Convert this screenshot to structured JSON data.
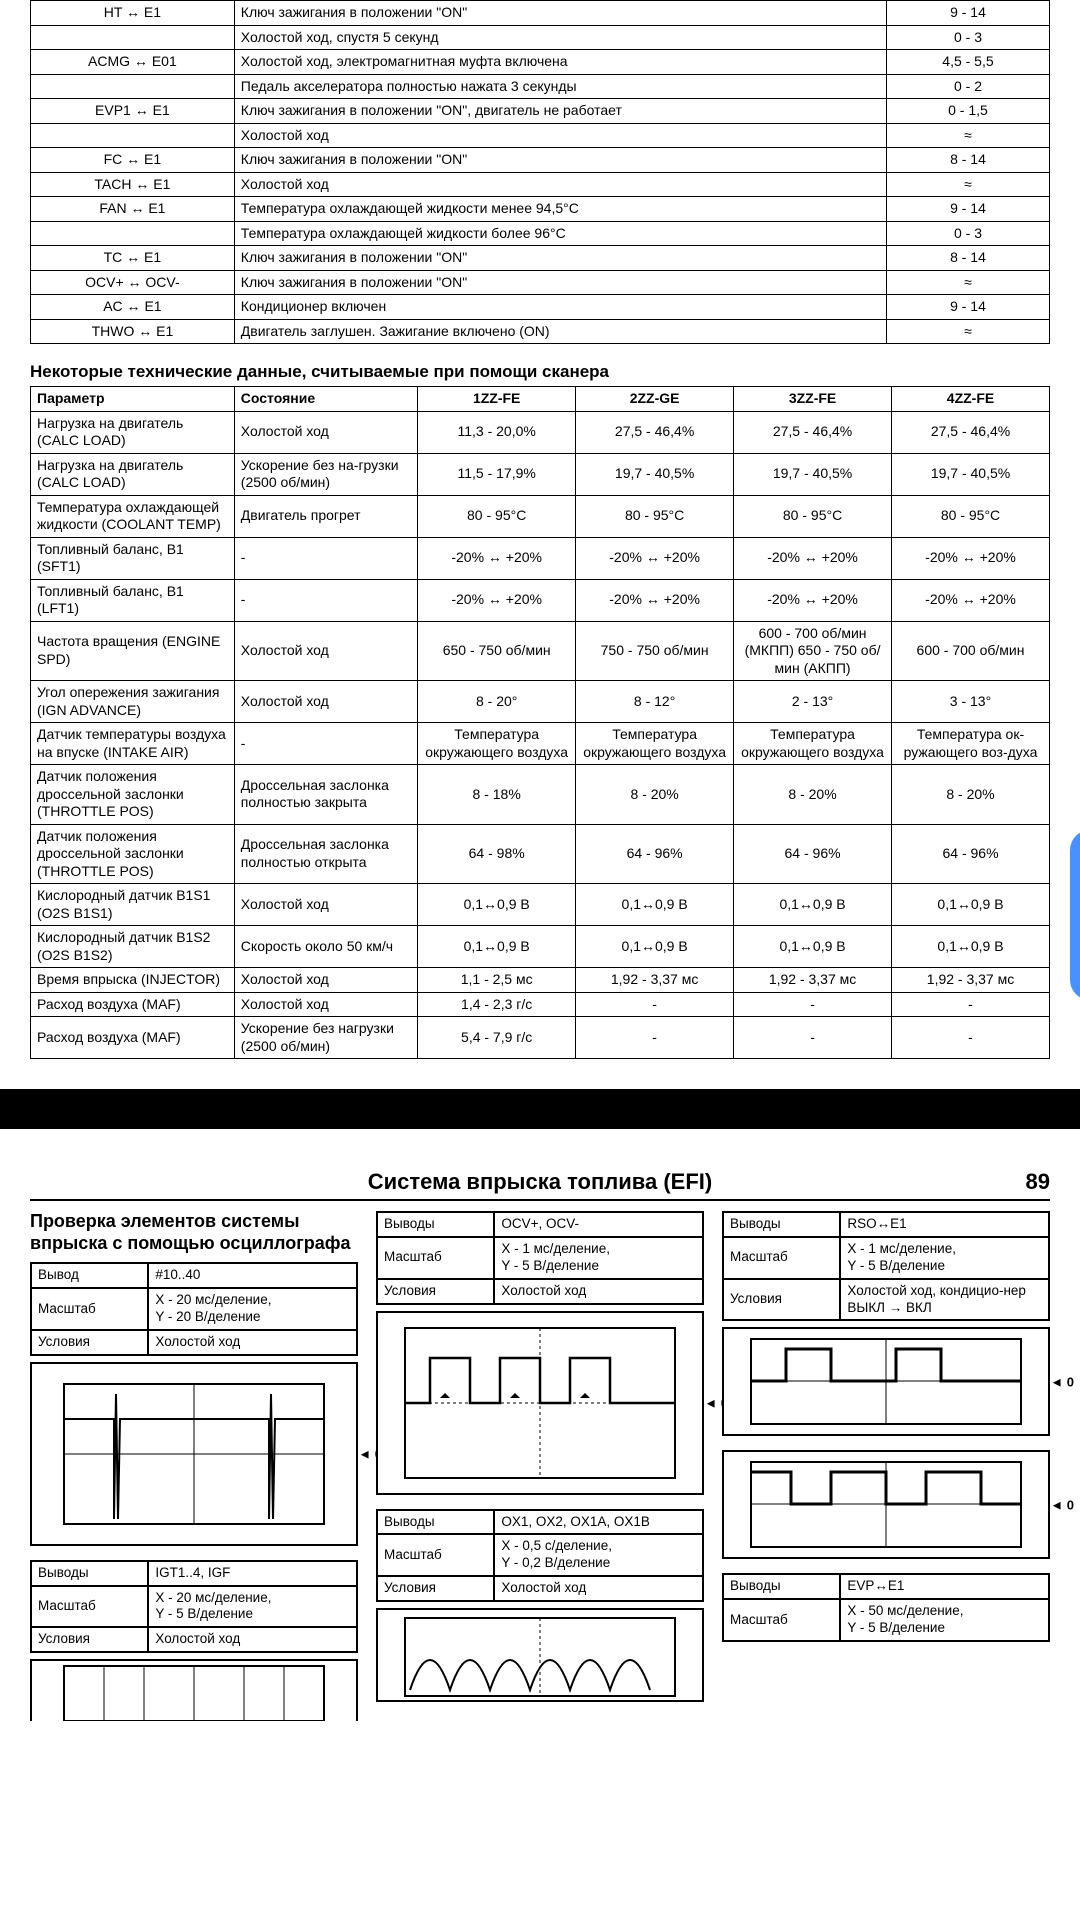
{
  "table1_rows": [
    [
      "HT ↔ E1",
      "Ключ зажигания в положении \"ON\"",
      "9 - 14"
    ],
    [
      "",
      "Холостой ход, спустя 5 секунд",
      "0 - 3"
    ],
    [
      "ACMG ↔ E01",
      "Холостой ход, электромагнитная муфта включена",
      "4,5 - 5,5"
    ],
    [
      "",
      "Педаль акселератора полностью нажата 3 секунды",
      "0 - 2"
    ],
    [
      "EVP1 ↔ E1",
      "Ключ зажигания в положении \"ON\", двигатель не работает",
      "0 - 1,5"
    ],
    [
      "",
      "Холостой ход",
      "≈"
    ],
    [
      "FC ↔ E1",
      "Ключ зажигания в положении \"ON\"",
      "8 - 14"
    ],
    [
      "TACH ↔  E1",
      "Холостой ход",
      "≈"
    ],
    [
      "FAN ↔ E1",
      "Температура охлаждающей жидкости менее 94,5°C",
      "9 - 14"
    ],
    [
      "",
      "Температура охлаждающей жидкости более 96°C",
      "0 - 3"
    ],
    [
      "TC ↔ E1",
      "Ключ зажигания в положении \"ON\"",
      "8 - 14"
    ],
    [
      "OCV+ ↔ OCV-",
      "Ключ зажигания в положении \"ON\"",
      "≈"
    ],
    [
      "AC ↔  E1",
      "Кондиционер включен",
      "9 - 14"
    ],
    [
      "THWO ↔  E1",
      "Двигатель заглушен. Зажигание включено (ON)",
      "≈"
    ]
  ],
  "sec2_title": "Некоторые технические данные, считываемые при помощи сканера",
  "table2_headers": [
    "Параметр",
    "Состояние",
    "1ZZ-FE",
    "2ZZ-GE",
    "3ZZ-FE",
    "4ZZ-FE"
  ],
  "table2_rows": [
    [
      "Нагрузка на двигатель (CALC LOAD)",
      "Холостой ход",
      "11,3 - 20,0%",
      "27,5 - 46,4%",
      "27,5 - 46,4%",
      "27,5 - 46,4%"
    ],
    [
      "Нагрузка на двигатель (CALC LOAD)",
      "Ускорение без на-грузки (2500 об/мин)",
      "11,5 - 17,9%",
      "19,7 - 40,5%",
      "19,7 - 40,5%",
      "19,7 - 40,5%"
    ],
    [
      "Температура охлаждающей жидкости (COOLANT TEMP)",
      "Двигатель прогрет",
      "80 - 95°C",
      "80 - 95°C",
      "80 - 95°C",
      "80 - 95°C"
    ],
    [
      "Топливный баланс, B1 (SFT1)",
      "-",
      "-20% ↔ +20%",
      "-20% ↔ +20%",
      "-20% ↔ +20%",
      "-20% ↔ +20%"
    ],
    [
      "Топливный баланс, B1 (LFT1)",
      "-",
      "-20% ↔ +20%",
      "-20% ↔ +20%",
      "-20% ↔ +20%",
      "-20% ↔ +20%"
    ],
    [
      "Частота вращения (ENGINE SPD)",
      "Холостой ход",
      "650 - 750 об/мин",
      "750 - 750 об/мин",
      "600 - 700 об/мин (МКПП) 650 - 750 об/мин (АКПП)",
      "600 - 700 об/мин"
    ],
    [
      "Угол опережения зажигания (IGN ADVANCE)",
      "Холостой ход",
      "8 - 20°",
      "8 - 12°",
      "2 - 13°",
      "3 - 13°"
    ],
    [
      "Датчик температуры воздуха на впуске (INTAKE AIR)",
      "-",
      "Температура окружающего воздуха",
      "Температура окружающего воздуха",
      "Температура окружающего воздуха",
      "Температура ок-ружающего воз-духа"
    ],
    [
      "Датчик положения дроссельной заслонки (THROTTLE POS)",
      "Дроссельная заслонка полностью закрыта",
      "8 - 18%",
      "8 - 20%",
      "8 - 20%",
      "8 - 20%"
    ],
    [
      "Датчик положения дроссельной заслонки (THROTTLE POS)",
      "Дроссельная заслонка полностью открыта",
      "64 - 98%",
      "64 - 96%",
      "64 - 96%",
      "64 - 96%"
    ],
    [
      "Кислородный датчик B1S1 (O2S B1S1)",
      "Холостой ход",
      "0,1↔0,9 В",
      "0,1↔0,9 В",
      "0,1↔0,9 В",
      "0,1↔0,9 В"
    ],
    [
      "Кислородный датчик B1S2 (O2S B1S2)",
      "Скорость около 50 км/ч",
      "0,1↔0,9 В",
      "0,1↔0,9 В",
      "0,1↔0,9 В",
      "0,1↔0,9 В"
    ],
    [
      "Время впрыска (INJECTOR)",
      "Холостой ход",
      "1,1 - 2,5 мс",
      "1,92 - 3,37 мс",
      "1,92 - 3,37 мс",
      "1,92 - 3,37 мс"
    ],
    [
      "Расход воздуха (MAF)",
      "Холостой ход",
      "1,4 - 2,3 г/с",
      "-",
      "-",
      "-"
    ],
    [
      "Расход воздуха (MAF)",
      "Ускорение без нагрузки (2500 об/мин)",
      "5,4 - 7,9 г/с",
      "-",
      "-",
      "-"
    ]
  ],
  "page2": {
    "title": "Система впрыска топлива (EFI)",
    "pagenum": "89",
    "left_title": "Проверка элементов системы впрыска с помощью осциллографа",
    "labels": {
      "pin": "Вывод",
      "pins": "Выводы",
      "scale": "Масштаб",
      "cond": "Условия"
    },
    "boxA": {
      "pin": "#10..40",
      "scale": "X - 20 мс/деление,\nY - 20 В/деление",
      "cond": "Холостой ход"
    },
    "boxB": {
      "pin": "IGT1..4, IGF",
      "scale": "X - 20 мс/деление,\nY - 5 В/деление",
      "cond": "Холостой ход"
    },
    "boxC": {
      "pin": "OCV+, OCV-",
      "scale": "X - 1 мс/деление,\nY - 5 В/деление",
      "cond": "Холостой ход"
    },
    "boxD": {
      "pin": "OX1, OX2, OX1A, OX1B",
      "scale": "X - 0,5 с/деление,\nY - 0,2 В/деление",
      "cond": "Холостой ход"
    },
    "boxE": {
      "pin": "RSO↔E1",
      "scale": "X - 1 мс/деление,\nY - 5 В/деление",
      "cond": "Холостой ход, кондицио-нер ВЫКЛ → ВКЛ"
    },
    "boxF": {
      "pin": "EVP↔E1",
      "scale": "X - 50 мс/деление,\nY - 5 В/деление"
    }
  }
}
